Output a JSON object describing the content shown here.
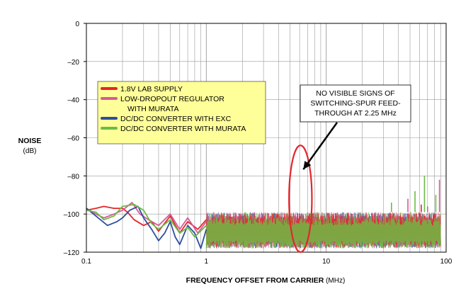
{
  "chart_data": {
    "type": "line",
    "x_scale": "log",
    "xlim": [
      0.1,
      100
    ],
    "ylim": [
      -120,
      0
    ],
    "grid": true,
    "x_ticks": [
      0.1,
      1,
      10,
      100
    ],
    "x_tick_labels": [
      "0.1",
      "1",
      "10",
      "100"
    ],
    "y_ticks": [
      0,
      -20,
      -40,
      -60,
      -80,
      -100,
      -120
    ],
    "y_tick_labels": [
      "0",
      "–20",
      "–40",
      "–60",
      "–80",
      "–100",
      "–120"
    ],
    "ylabel_line1": "NOISE",
    "ylabel_line2": "(dB)",
    "xlabel_main": "FREQUENCY OFFSET FROM CARRIER",
    "xlabel_unit": " (MHz)",
    "legend": {
      "placement": "upper-left",
      "background": "#ffff99",
      "entries": [
        {
          "lines": [
            "1.8V LAB SUPPLY"
          ],
          "color": "#e3262c"
        },
        {
          "lines": [
            "LOW-DROPOUT REGULATOR",
            "WITH MURATA"
          ],
          "color": "#d65a9a"
        },
        {
          "lines": [
            "DC/DC CONVERTER WITH EXC"
          ],
          "color": "#2d4e9e"
        },
        {
          "lines": [
            "DC/DC CONVERTER WITH MURATA"
          ],
          "color": "#6dbb45"
        }
      ]
    },
    "annotation": {
      "lines": [
        "NO VISIBLE SIGNS OF",
        "SWITCHING-SPUR FEED-",
        "THROUGH AT 2.25 MHz"
      ],
      "ellipse_color": "#e3262c",
      "ellipse_x_center": 6.1,
      "ellipse_y_center": -92,
      "ellipse_x_range": [
        4.9,
        7.6
      ],
      "ellipse_y_range": [
        -64,
        -120
      ]
    },
    "series": [
      {
        "name": "1.8V LAB SUPPLY",
        "color": "#e3262c",
        "x": [
          0.1,
          0.12,
          0.14,
          0.17,
          0.2,
          0.22,
          0.25,
          0.3,
          0.35,
          0.4,
          0.5,
          0.6,
          0.7,
          0.85,
          1.0
        ],
        "y": [
          -98,
          -97,
          -96,
          -97,
          -97,
          -99,
          -103,
          -106,
          -104,
          -109,
          -101,
          -110,
          -104,
          -108,
          -103
        ]
      },
      {
        "name": "LOW-DROPOUT REGULATOR WITH MURATA",
        "color": "#d65a9a",
        "x": [
          0.1,
          0.12,
          0.14,
          0.17,
          0.2,
          0.24,
          0.28,
          0.33,
          0.4,
          0.5,
          0.6,
          0.7,
          0.85,
          1.0
        ],
        "y": [
          -97,
          -100,
          -102,
          -100,
          -98,
          -94,
          -100,
          -103,
          -106,
          -100,
          -108,
          -102,
          -110,
          -104
        ]
      },
      {
        "name": "DC/DC CONVERTER WITH EXC",
        "color": "#2d4e9e",
        "x": [
          0.1,
          0.12,
          0.15,
          0.18,
          0.2,
          0.23,
          0.27,
          0.3,
          0.35,
          0.4,
          0.45,
          0.5,
          0.55,
          0.6,
          0.7,
          0.8,
          0.9,
          1.0
        ],
        "y": [
          -97,
          -101,
          -106,
          -104,
          -102,
          -98,
          -96,
          -102,
          -108,
          -114,
          -110,
          -104,
          -112,
          -116,
          -106,
          -110,
          -118,
          -108
        ]
      },
      {
        "name": "DC/DC CONVERTER WITH MURATA",
        "color": "#6dbb45",
        "x": [
          0.1,
          0.12,
          0.14,
          0.17,
          0.2,
          0.25,
          0.3,
          0.35,
          0.4,
          0.5,
          0.6,
          0.7,
          0.8,
          1.0
        ],
        "y": [
          -98,
          -99,
          -103,
          -101,
          -96,
          -95,
          -98,
          -105,
          -108,
          -103,
          -110,
          -107,
          -112,
          -106
        ]
      }
    ],
    "noise_band": {
      "x_range": [
        1,
        90
      ],
      "y_lower": -118,
      "y_upper": -99,
      "spikes": [
        {
          "x": 35,
          "y": -94
        },
        {
          "x": 48,
          "y": -92
        },
        {
          "x": 55,
          "y": -88
        },
        {
          "x": 62,
          "y": -95
        },
        {
          "x": 66,
          "y": -80
        },
        {
          "x": 70,
          "y": -96
        },
        {
          "x": 82,
          "y": -90
        },
        {
          "x": 88,
          "y": -82
        }
      ]
    }
  }
}
